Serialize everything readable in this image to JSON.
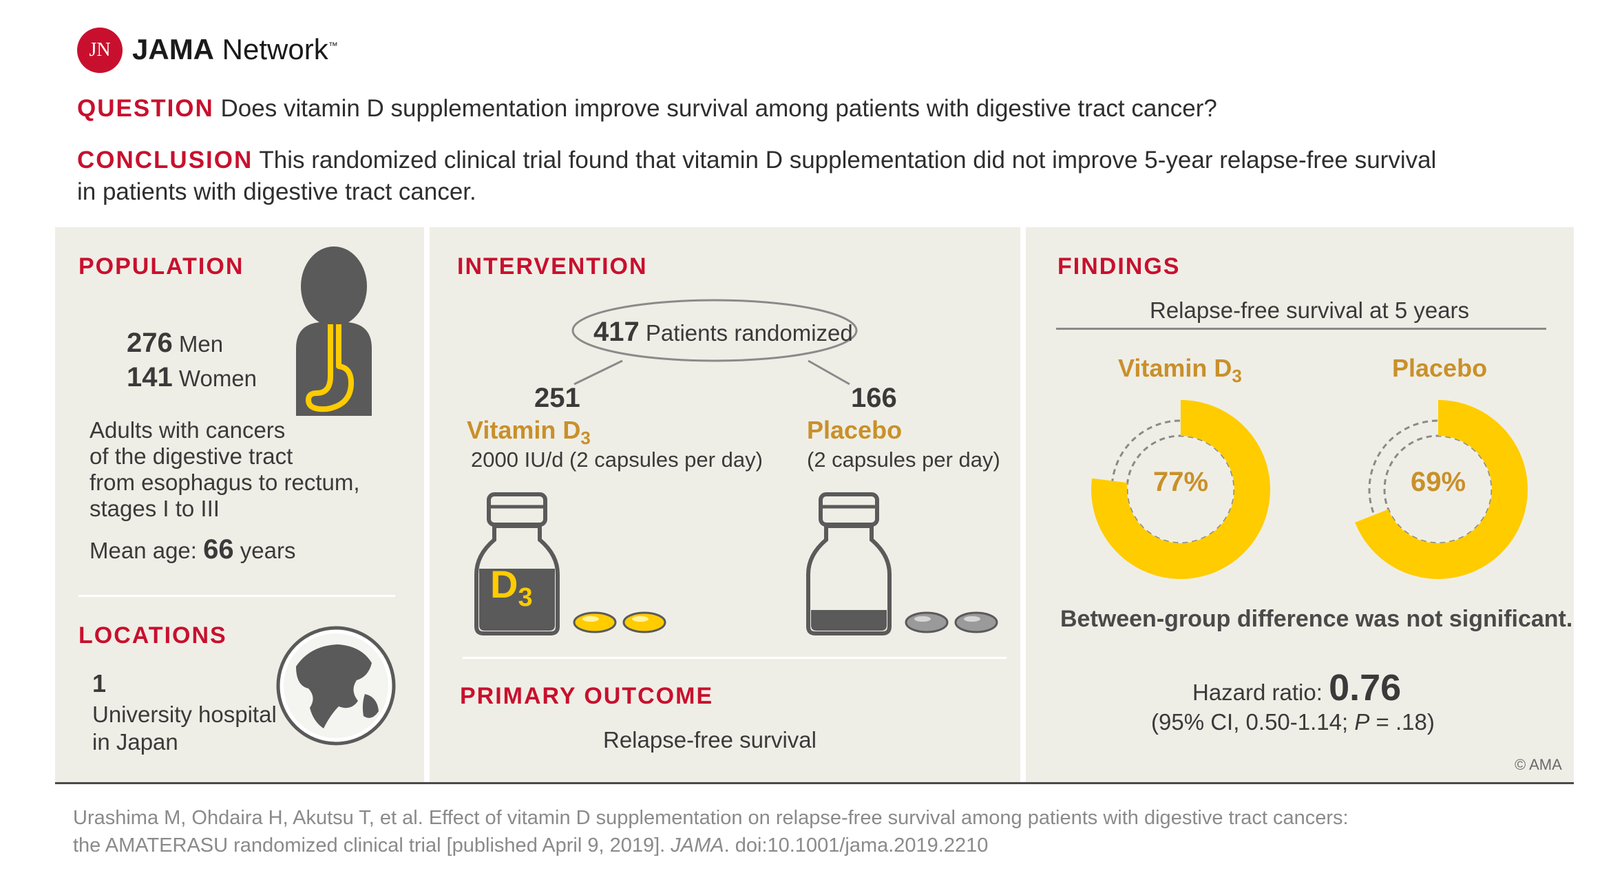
{
  "header": {
    "logo_mark": "JN",
    "logo_text_bold": "JAMA",
    "logo_text_rest": " Network",
    "logo_tm": "™"
  },
  "question": {
    "label": "QUESTION",
    "text": "Does vitamin D supplementation improve survival among patients with digestive tract cancer?"
  },
  "conclusion": {
    "label": "CONCLUSION",
    "line1": "This randomized clinical trial found that vitamin D supplementation did not improve 5-year relapse-free survival",
    "line2": "in patients with digestive tract cancer."
  },
  "population": {
    "title": "POPULATION",
    "men_count": "276",
    "men_label": "Men",
    "women_count": "141",
    "women_label": "Women",
    "desc_lines": [
      "Adults with cancers",
      "of the digestive tract",
      "from esophagus to rectum,",
      "stages I to III"
    ],
    "age_label": "Mean age:",
    "age_value": "66",
    "age_unit": "years"
  },
  "locations": {
    "title": "LOCATIONS",
    "count": "1",
    "line1": "University hospital",
    "line2": "in Japan"
  },
  "intervention": {
    "title": "INTERVENTION",
    "randomized_count": "417",
    "randomized_label": "Patients randomized",
    "arm1": {
      "count": "251",
      "name": "Vitamin D",
      "sub": "3",
      "dose": "2000 IU/d (2 capsules per day)",
      "bottle_label": "D",
      "bottle_sub": "3"
    },
    "arm2": {
      "count": "166",
      "name": "Placebo",
      "dose": "(2 capsules per day)"
    }
  },
  "primary_outcome": {
    "title": "PRIMARY OUTCOME",
    "text": "Relapse-free survival"
  },
  "findings": {
    "title": "FINDINGS",
    "subtitle": "Relapse-free survival at 5 years",
    "group1": {
      "name": "Vitamin D",
      "sub": "3",
      "value_label": "77%",
      "value": 77
    },
    "group2": {
      "name": "Placebo",
      "value_label": "69%",
      "value": 69
    },
    "note": "Between-group difference was not significant.",
    "hr_label": "Hazard ratio:",
    "hr_value": "0.76",
    "ci_prefix": "(95% CI, 0.50-1.14; ",
    "ci_p": "P",
    "ci_suffix": " = .18)",
    "copyright": "© AMA"
  },
  "colors": {
    "red": "#c8102e",
    "gold": "#c9902a",
    "yellow": "#ffcc00",
    "panel": "#efeee6",
    "dark": "#5a5a5a"
  },
  "citation": {
    "line1": "Urashima M, Ohdaira H, Akutsu T, et al. Effect of vitamin D supplementation on relapse-free survival among patients with digestive tract cancers:",
    "line2_pre": "the AMATERASU randomized clinical trial [published April 9, 2019]. ",
    "line2_journal": "JAMA",
    "line2_post": ". doi:10.1001/jama.2019.2210"
  }
}
